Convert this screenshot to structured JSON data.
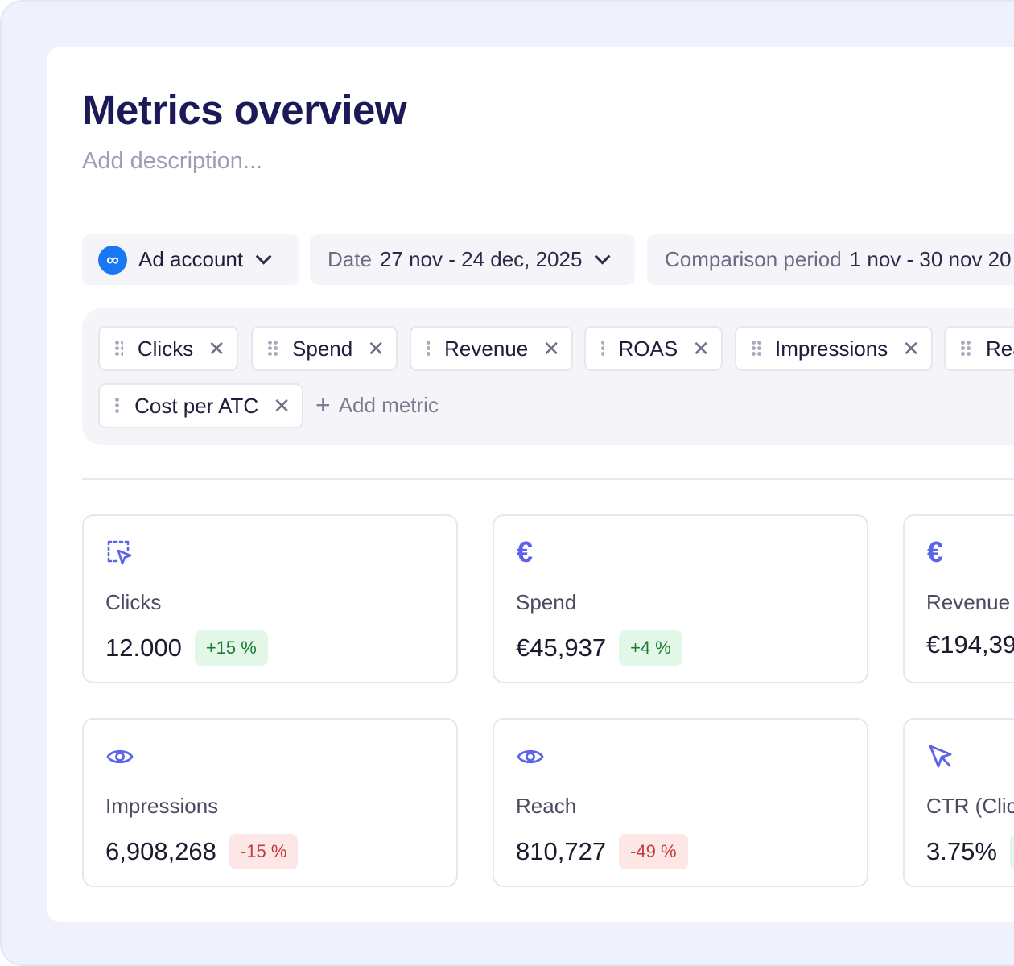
{
  "page": {
    "title": "Metrics overview",
    "description_placeholder": "Add description..."
  },
  "filters": {
    "account": {
      "label": "Ad account",
      "icon": "meta-logo-icon",
      "brand_color": "#1877f2"
    },
    "date": {
      "label": "Date",
      "value": "27 nov - 24 dec, 2025"
    },
    "comparison": {
      "label": "Comparison period",
      "value": "1 nov - 30 nov 20"
    }
  },
  "metric_chips": [
    {
      "label": "Clicks"
    },
    {
      "label": "Spend"
    },
    {
      "label": "Revenue"
    },
    {
      "label": "ROAS"
    },
    {
      "label": "Impressions"
    },
    {
      "label": "Rea"
    },
    {
      "label": "Cost per ATC"
    }
  ],
  "add_metric_label": "Add metric",
  "cards": [
    {
      "icon": "dashed-cursor-icon",
      "label": "Clicks",
      "value": "12.000",
      "change": "+15 %",
      "trend": "positive"
    },
    {
      "icon": "euro-icon",
      "label": "Spend",
      "value": "€45,937",
      "change": "+4 %",
      "trend": "positive"
    },
    {
      "icon": "euro-icon",
      "label": "Revenue",
      "value": "€194,39",
      "change": "",
      "trend": ""
    },
    {
      "icon": "eye-icon",
      "label": "Impressions",
      "value": "6,908,268",
      "change": "-15 %",
      "trend": "negative"
    },
    {
      "icon": "eye-icon",
      "label": "Reach",
      "value": "810,727",
      "change": "-49 %",
      "trend": "negative"
    },
    {
      "icon": "cursor-icon",
      "label": "CTR (Click",
      "value": "3.75%",
      "change": "",
      "trend": "positive"
    }
  ],
  "colors": {
    "accent": "#5b63e8",
    "positive_bg": "#e3f7e8",
    "positive_text": "#1c7a35",
    "negative_bg": "#fde6e6",
    "negative_text": "#c53a3a"
  }
}
